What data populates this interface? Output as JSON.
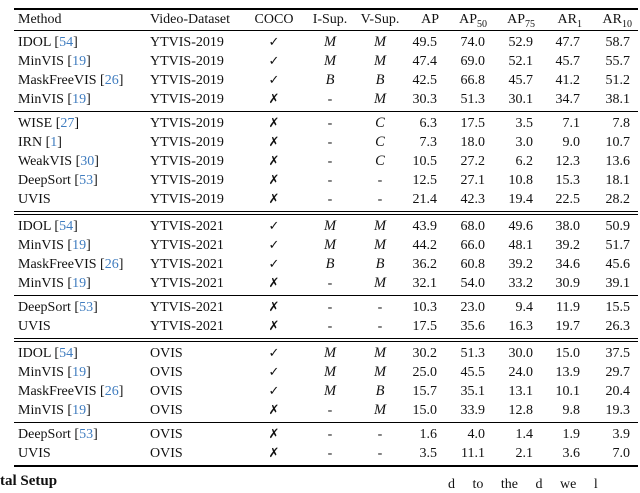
{
  "colors": {
    "citation_blue": "#3f7cbf",
    "rule_black": "#000000"
  },
  "icons": {
    "check": "✓",
    "cross": "✗"
  },
  "table": {
    "headers": [
      {
        "label": "Method"
      },
      {
        "label": "Video-Dataset"
      },
      {
        "label": "COCO"
      },
      {
        "label": "I-Sup."
      },
      {
        "label": "V-Sup."
      },
      {
        "label": "AP",
        "sub": ""
      },
      {
        "label": "AP",
        "sub": "50"
      },
      {
        "label": "AP",
        "sub": "75"
      },
      {
        "label": "AR",
        "sub": "1"
      },
      {
        "label": "AR",
        "sub": "10"
      }
    ],
    "groups": [
      {
        "separator": "none",
        "rows": [
          {
            "method": "IDOL",
            "cite": "54",
            "dataset": "YTVIS-2019",
            "coco": "check",
            "isup": "M",
            "vsup": "M",
            "ap": "49.5",
            "ap50": "74.0",
            "ap75": "52.9",
            "ar1": "47.7",
            "ar10": "58.7"
          },
          {
            "method": "MinVIS",
            "cite": "19",
            "dataset": "YTVIS-2019",
            "coco": "check",
            "isup": "M",
            "vsup": "M",
            "ap": "47.4",
            "ap50": "69.0",
            "ap75": "52.1",
            "ar1": "45.7",
            "ar10": "55.7"
          },
          {
            "method": "MaskFreeVIS",
            "cite": "26",
            "dataset": "YTVIS-2019",
            "coco": "check",
            "isup": "B",
            "vsup": "B",
            "ap": "42.5",
            "ap50": "66.8",
            "ap75": "45.7",
            "ar1": "41.2",
            "ar10": "51.2"
          },
          {
            "method": "MinVIS",
            "cite": "19",
            "dataset": "YTVIS-2019",
            "coco": "cross",
            "isup": "-",
            "vsup": "M",
            "ap": "30.3",
            "ap50": "51.3",
            "ap75": "30.1",
            "ar1": "34.7",
            "ar10": "38.1"
          }
        ]
      },
      {
        "separator": "thin",
        "rows": [
          {
            "method": "WISE",
            "cite": "27",
            "dataset": "YTVIS-2019",
            "coco": "cross",
            "isup": "-",
            "vsup": "C",
            "ap": "6.3",
            "ap50": "17.5",
            "ap75": "3.5",
            "ar1": "7.1",
            "ar10": "7.8"
          },
          {
            "method": "IRN",
            "cite": "1",
            "dataset": "YTVIS-2019",
            "coco": "cross",
            "isup": "-",
            "vsup": "C",
            "ap": "7.3",
            "ap50": "18.0",
            "ap75": "3.0",
            "ar1": "9.0",
            "ar10": "10.7"
          },
          {
            "method": "WeakVIS",
            "cite": "30",
            "dataset": "YTVIS-2019",
            "coco": "cross",
            "isup": "-",
            "vsup": "C",
            "ap": "10.5",
            "ap50": "27.2",
            "ap75": "6.2",
            "ar1": "12.3",
            "ar10": "13.6"
          },
          {
            "method": "DeepSort",
            "cite": "53",
            "dataset": "YTVIS-2019",
            "coco": "cross",
            "isup": "-",
            "vsup": "-",
            "ap": "12.5",
            "ap50": "27.1",
            "ap75": "10.8",
            "ar1": "15.3",
            "ar10": "18.1"
          },
          {
            "method": "UVIS",
            "cite": null,
            "dataset": "YTVIS-2019",
            "coco": "cross",
            "isup": "-",
            "vsup": "-",
            "ap": "21.4",
            "ap50": "42.3",
            "ap75": "19.4",
            "ar1": "22.5",
            "ar10": "28.2"
          }
        ]
      },
      {
        "separator": "double",
        "rows": [
          {
            "method": "IDOL",
            "cite": "54",
            "dataset": "YTVIS-2021",
            "coco": "check",
            "isup": "M",
            "vsup": "M",
            "ap": "43.9",
            "ap50": "68.0",
            "ap75": "49.6",
            "ar1": "38.0",
            "ar10": "50.9"
          },
          {
            "method": "MinVIS",
            "cite": "19",
            "dataset": "YTVIS-2021",
            "coco": "check",
            "isup": "M",
            "vsup": "M",
            "ap": "44.2",
            "ap50": "66.0",
            "ap75": "48.1",
            "ar1": "39.2",
            "ar10": "51.7"
          },
          {
            "method": "MaskFreeVIS",
            "cite": "26",
            "dataset": "YTVIS-2021",
            "coco": "check",
            "isup": "B",
            "vsup": "B",
            "ap": "36.2",
            "ap50": "60.8",
            "ap75": "39.2",
            "ar1": "34.6",
            "ar10": "45.6"
          },
          {
            "method": "MinVIS",
            "cite": "19",
            "dataset": "YTVIS-2021",
            "coco": "cross",
            "isup": "-",
            "vsup": "M",
            "ap": "32.1",
            "ap50": "54.0",
            "ap75": "33.2",
            "ar1": "30.9",
            "ar10": "39.1"
          }
        ]
      },
      {
        "separator": "thin",
        "rows": [
          {
            "method": "DeepSort",
            "cite": "53",
            "dataset": "YTVIS-2021",
            "coco": "cross",
            "isup": "-",
            "vsup": "-",
            "ap": "10.3",
            "ap50": "23.0",
            "ap75": "9.4",
            "ar1": "11.9",
            "ar10": "15.5"
          },
          {
            "method": "UVIS",
            "cite": null,
            "dataset": "YTVIS-2021",
            "coco": "cross",
            "isup": "-",
            "vsup": "-",
            "ap": "17.5",
            "ap50": "35.6",
            "ap75": "16.3",
            "ar1": "19.7",
            "ar10": "26.3"
          }
        ]
      },
      {
        "separator": "double",
        "rows": [
          {
            "method": "IDOL",
            "cite": "54",
            "dataset": "OVIS",
            "coco": "check",
            "isup": "M",
            "vsup": "M",
            "ap": "30.2",
            "ap50": "51.3",
            "ap75": "30.0",
            "ar1": "15.0",
            "ar10": "37.5"
          },
          {
            "method": "MinVIS",
            "cite": "19",
            "dataset": "OVIS",
            "coco": "check",
            "isup": "M",
            "vsup": "M",
            "ap": "25.0",
            "ap50": "45.5",
            "ap75": "24.0",
            "ar1": "13.9",
            "ar10": "29.7"
          },
          {
            "method": "MaskFreeVIS",
            "cite": "26",
            "dataset": "OVIS",
            "coco": "check",
            "isup": "M",
            "vsup": "B",
            "ap": "15.7",
            "ap50": "35.1",
            "ap75": "13.1",
            "ar1": "10.1",
            "ar10": "20.4"
          },
          {
            "method": "MinVIS",
            "cite": "19",
            "dataset": "OVIS",
            "coco": "cross",
            "isup": "-",
            "vsup": "M",
            "ap": "15.0",
            "ap50": "33.9",
            "ap75": "12.8",
            "ar1": "9.8",
            "ar10": "19.3"
          }
        ]
      },
      {
        "separator": "thin",
        "rows": [
          {
            "method": "DeepSort",
            "cite": "53",
            "dataset": "OVIS",
            "coco": "cross",
            "isup": "-",
            "vsup": "-",
            "ap": "1.6",
            "ap50": "4.0",
            "ap75": "1.4",
            "ar1": "1.9",
            "ar10": "3.9"
          },
          {
            "method": "UVIS",
            "cite": null,
            "dataset": "OVIS",
            "coco": "cross",
            "isup": "-",
            "vsup": "-",
            "ap": "3.5",
            "ap50": "11.1",
            "ap75": "2.1",
            "ar1": "3.6",
            "ar10": "7.0"
          }
        ]
      }
    ]
  },
  "footer": {
    "heading_fragment": "tal Setup",
    "body_fragment": "d to the d we l"
  }
}
